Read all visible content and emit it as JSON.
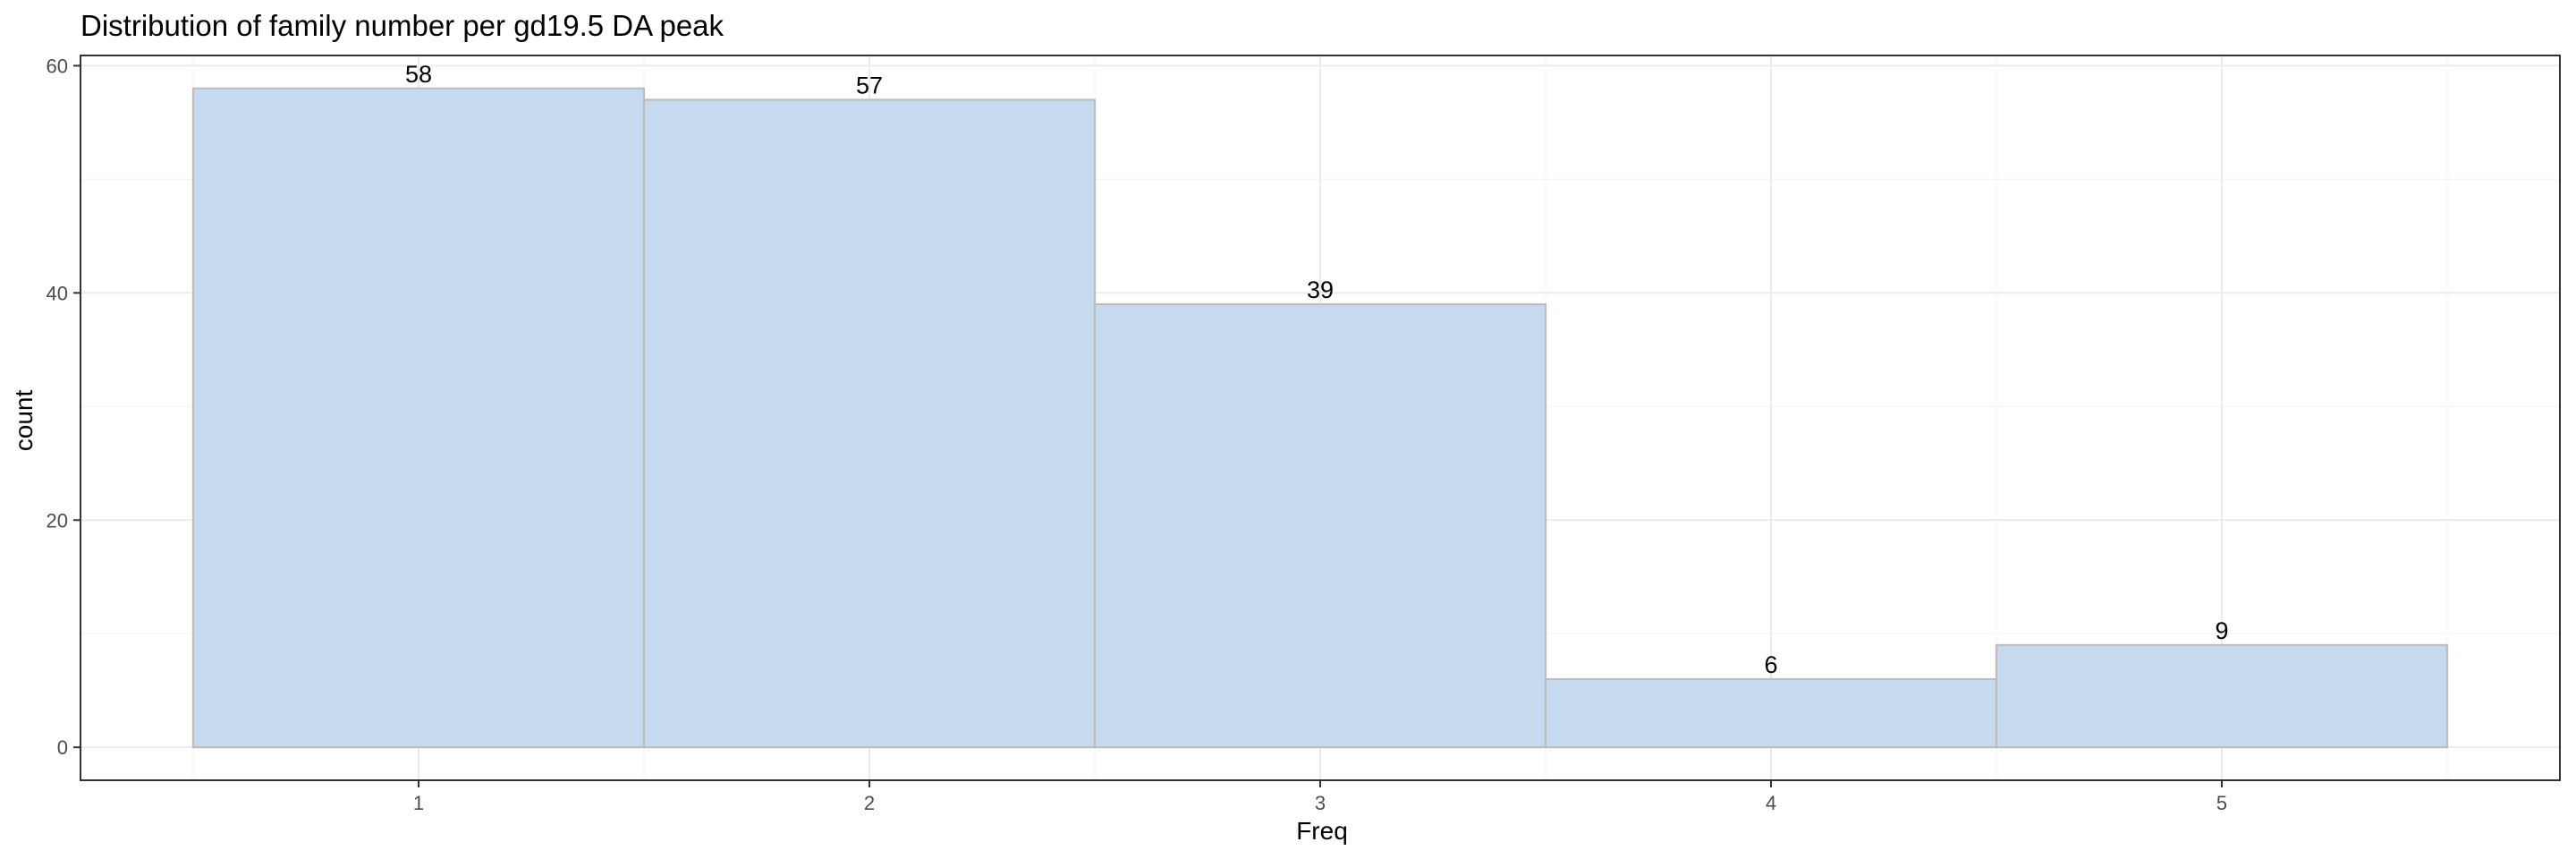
{
  "chart_data": {
    "type": "bar",
    "title": "Distribution of family number per gd19.5 DA peak",
    "xlabel": "Freq",
    "ylabel": "count",
    "categories": [
      "1",
      "2",
      "3",
      "4",
      "5"
    ],
    "values": [
      58,
      57,
      39,
      6,
      9
    ],
    "data_labels": [
      "58",
      "57",
      "39",
      "6",
      "9"
    ],
    "ylim": [
      -2.9,
      60.9
    ],
    "yticks": [
      0,
      20,
      40,
      60
    ],
    "ytick_labels": [
      "0",
      "20",
      "40",
      "60"
    ],
    "xlim": [
      0.25,
      5.75
    ],
    "grid": true,
    "legend": "none",
    "colors": {
      "bar_fill": "#c6dbef",
      "bar_stroke": "#bdbdbd",
      "grid_major": "#ebebeb",
      "grid_minor": "#f5f5f5",
      "panel_border": "#333333",
      "tick_label": "#4d4d4d"
    }
  }
}
